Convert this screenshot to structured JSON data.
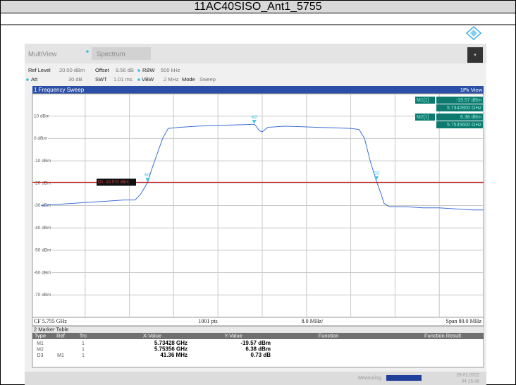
{
  "header": {
    "title": "11AC40SISO_Ant1_5755"
  },
  "toolbar": {
    "tabs": [
      "MultiView",
      "Spectrum"
    ],
    "settings": [
      {
        "name": "Ref Level",
        "value": "20.00 dBm"
      },
      {
        "name": "Offset",
        "value": "9.56 dB"
      },
      {
        "name": "RBW",
        "value": "500 kHz"
      },
      {
        "name": "Att",
        "value": "30 dB"
      },
      {
        "name": "SWT",
        "value": "1.01 ms"
      },
      {
        "name": "VBW",
        "value": "2 MHz"
      },
      {
        "name": "Mode",
        "value": "Sweep"
      }
    ]
  },
  "window": {
    "title": "1 Frequency Sweep",
    "view": "1Pk View"
  },
  "marker_info": [
    {
      "name": "M1[1]",
      "level": "-19.57 dBm",
      "freq": "5.7342800 GHz"
    },
    {
      "name": "M2[1]",
      "level": "6.38 dBm",
      "freq": "5.7535600 GHz"
    }
  ],
  "chart_data": {
    "type": "line",
    "color": "#3d6fd6",
    "xlim": [
      5.715,
      5.795
    ],
    "ylim": [
      -80,
      20
    ],
    "yticks": [
      {
        "value": 10,
        "label": "10 dBm"
      },
      {
        "value": 0,
        "label": "0 dBm"
      },
      {
        "value": -10,
        "label": "-10 dBm"
      },
      {
        "value": -20,
        "label": "-20 dBm"
      },
      {
        "value": -30,
        "label": "-30 dBm"
      },
      {
        "value": -40,
        "label": "-40 dBm"
      },
      {
        "value": -50,
        "label": "-50 dBm"
      },
      {
        "value": -60,
        "label": "-60 dBm"
      },
      {
        "value": -70,
        "label": "-70 dBm"
      }
    ],
    "xticks": [
      5.723,
      5.731,
      5.739,
      5.747,
      5.755,
      5.763,
      5.771,
      5.779,
      5.787
    ],
    "x": [
      5.715,
      5.718,
      5.721,
      5.724,
      5.727,
      5.73,
      5.732,
      5.733,
      5.7343,
      5.735,
      5.736,
      5.737,
      5.738,
      5.74,
      5.743,
      5.746,
      5.749,
      5.752,
      5.7536,
      5.7545,
      5.755,
      5.756,
      5.759,
      5.762,
      5.765,
      5.768,
      5.771,
      5.7725,
      5.7735,
      5.7745,
      5.7756,
      5.7765,
      5.777,
      5.778,
      5.781,
      5.784,
      5.787,
      5.79,
      5.793,
      5.795
    ],
    "values": [
      -30,
      -29.5,
      -29,
      -28.5,
      -28,
      -27.5,
      -27.5,
      -25,
      -19.6,
      -14,
      -7,
      0,
      4.5,
      5,
      5.5,
      5.8,
      6,
      6.2,
      6.4,
      3.5,
      3,
      5,
      5.5,
      5.3,
      5,
      4.8,
      4.5,
      4,
      0,
      -10,
      -18.8,
      -25,
      -29,
      -30.5,
      -30.5,
      -31,
      -31,
      -31.5,
      -32,
      -32
    ],
    "display_line": {
      "value": -19.57,
      "label": "D1 -19.570 dBm"
    },
    "markers": [
      {
        "label": "M1",
        "x": 5.73428,
        "y": -19.57
      },
      {
        "label": "M2",
        "x": 5.75356,
        "y": 6.38
      },
      {
        "label": "D3",
        "x": 5.77564,
        "y": -18.84
      }
    ],
    "footer": {
      "center": "CF 5.755 GHz",
      "points": "1001 pts",
      "div": "8.0 MHz/",
      "span": "Span 80.0 MHz"
    }
  },
  "marker_table": {
    "title": "2 Marker Table",
    "columns": [
      "Type",
      "Ref",
      "Trc",
      "X-Value",
      "Y-Value",
      "Function",
      "Function Result"
    ],
    "rows": [
      {
        "type": "M1",
        "trc": "1",
        "x": "5.73428 GHz",
        "y": "-19.57 dBm"
      },
      {
        "type": "M2",
        "trc": "1",
        "x": "5.75356 GHz",
        "y": "6.38 dBm"
      },
      {
        "type": "D3",
        "ref": "M1",
        "trc": "1",
        "x": "41.36 MHz",
        "y": "0.73 dB"
      }
    ]
  },
  "status": {
    "text": "Measuring...",
    "date": "26.01.2022",
    "time": "04:15:39"
  }
}
